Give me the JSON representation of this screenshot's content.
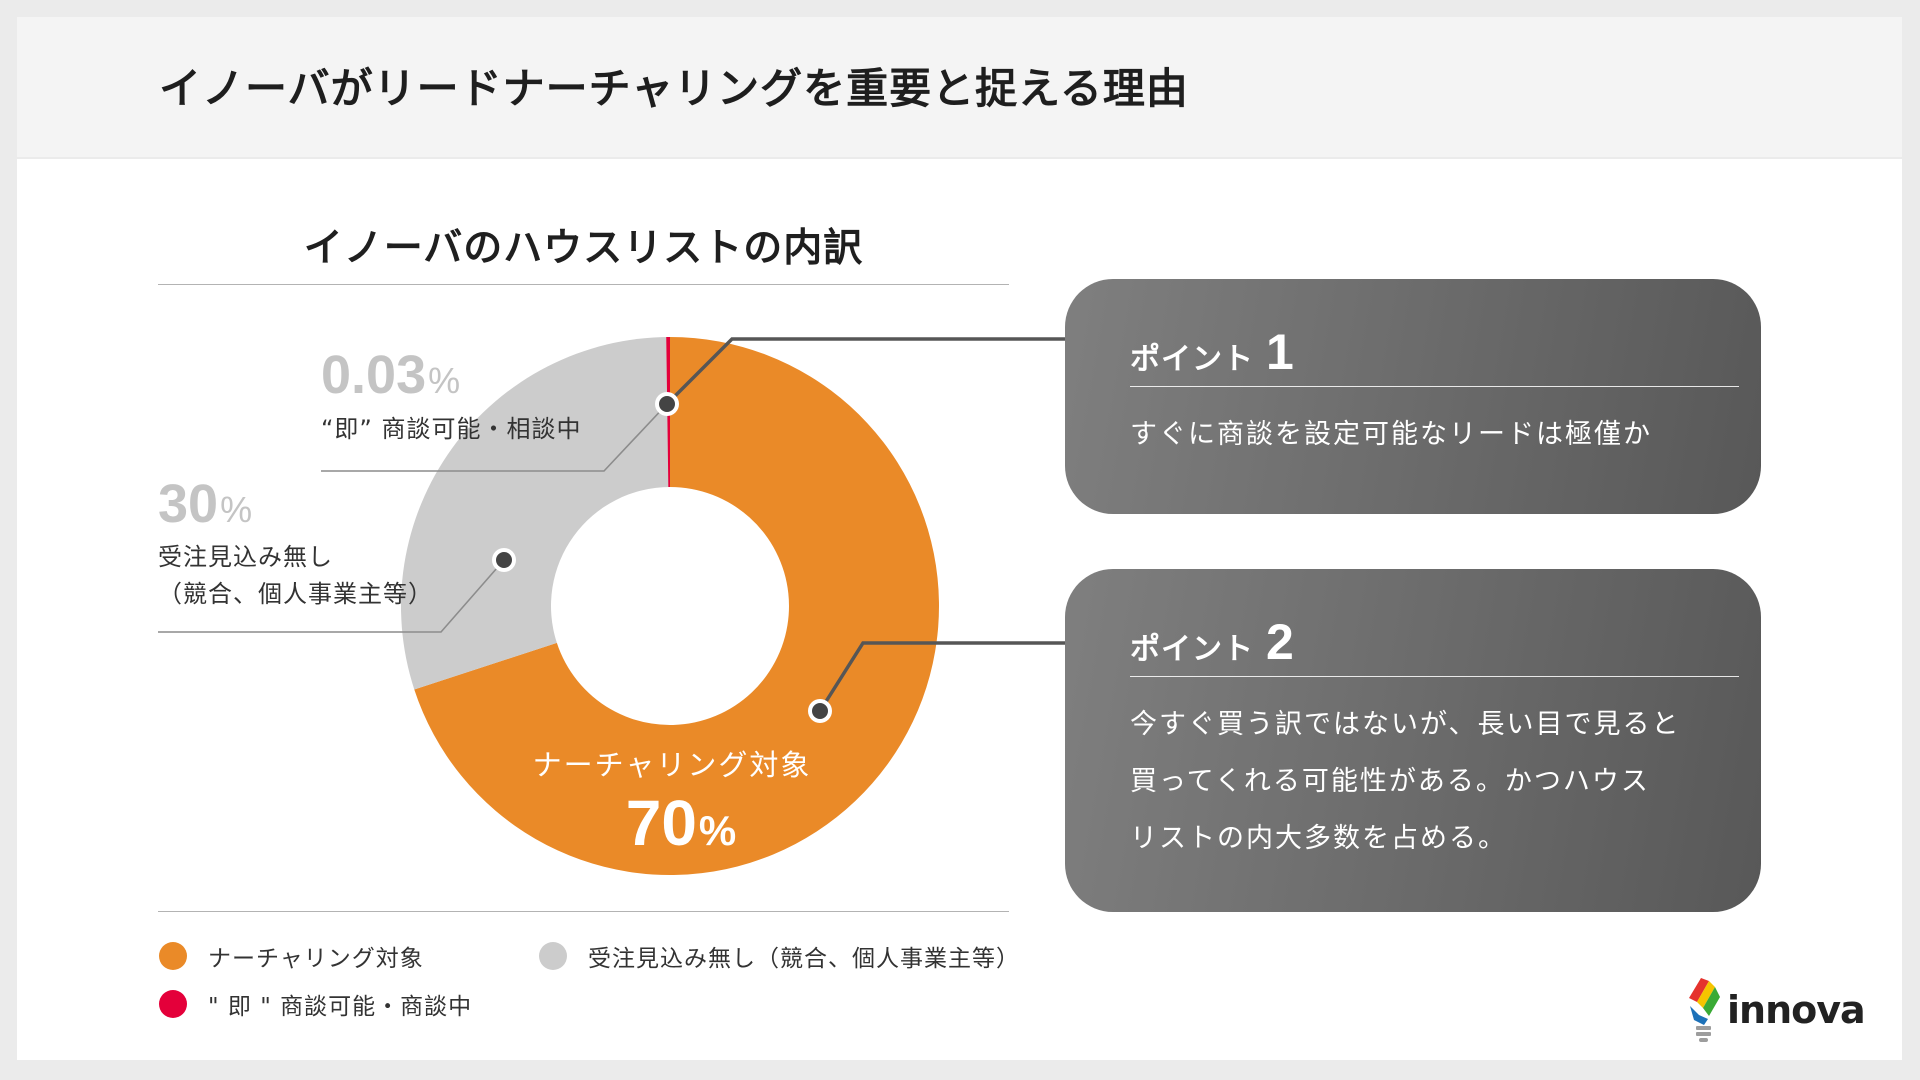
{
  "header": {
    "title": "イノーバがリードナーチャリングを重要と捉える理由"
  },
  "chart_data": {
    "type": "pie",
    "donut": true,
    "title": "イノーバのハウスリストの内訳",
    "categories": [
      "ナーチャリング対象",
      "受注見込み無し（競合、個人事業主等）",
      "\" 即 \" 商談可能・商談中"
    ],
    "values": [
      70,
      30,
      0.03
    ],
    "unit": "%",
    "colors": [
      "#EA8A28",
      "#CCCCCC",
      "#E4003A"
    ],
    "legend": "bottom",
    "annotations": {
      "nurture": "ナーチャリング対象",
      "no_prospect": [
        "受注見込み無し",
        "（競合、個人事業主等）"
      ],
      "immediate": "“即” 商談可能・相談中"
    }
  },
  "points": [
    {
      "heading": "ポイント",
      "number": "1",
      "lines": [
        "すぐに商談を設定可能なリードは極僅か"
      ]
    },
    {
      "heading": "ポイント",
      "number": "2",
      "lines": [
        "今すぐ買う訳ではないが、長い目で見ると",
        "買ってくれる可能性がある。かつハウス",
        "リストの内大多数を占める。"
      ]
    }
  ],
  "logo": {
    "icon": "innova-lightbulb-icon",
    "text": "innova"
  }
}
